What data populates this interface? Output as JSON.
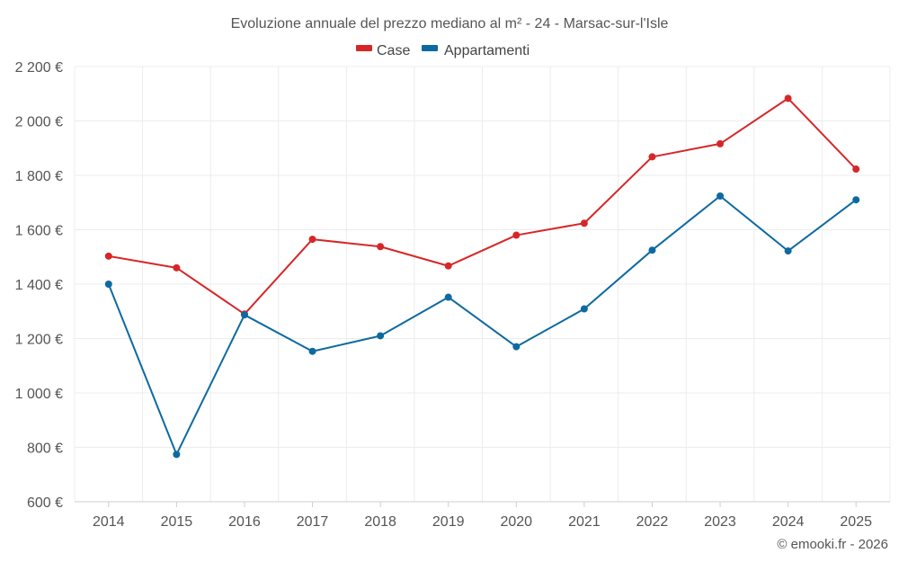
{
  "chart_data": {
    "type": "line",
    "title": "Evoluzione annuale del prezzo mediano al m² - 24 - Marsac-sur-l'Isle",
    "categories": [
      "2014",
      "2015",
      "2016",
      "2017",
      "2018",
      "2019",
      "2020",
      "2021",
      "2022",
      "2023",
      "2024",
      "2025"
    ],
    "series": [
      {
        "name": "Case",
        "color": "#d62728",
        "values": [
          1503,
          1460,
          1290,
          1565,
          1538,
          1467,
          1580,
          1624,
          1868,
          1916,
          2083,
          1823
        ]
      },
      {
        "name": "Appartamenti",
        "color": "#0d6aa0",
        "values": [
          1400,
          774,
          1287,
          1153,
          1210,
          1352,
          1170,
          1309,
          1525,
          1724,
          1522,
          1710
        ]
      }
    ],
    "ylim": [
      600,
      2200
    ],
    "yticks": [
      600,
      800,
      1000,
      1200,
      1400,
      1600,
      1800,
      2000,
      2200
    ],
    "ytick_labels": [
      "600 €",
      "800 €",
      "1 000 €",
      "1 200 €",
      "1 400 €",
      "1 600 €",
      "1 800 €",
      "2 000 €",
      "2 200 €"
    ],
    "xlabel": "",
    "ylabel": "",
    "grid": true,
    "legend_position": "top-center"
  },
  "credit": "© emooki.fr - 2026"
}
